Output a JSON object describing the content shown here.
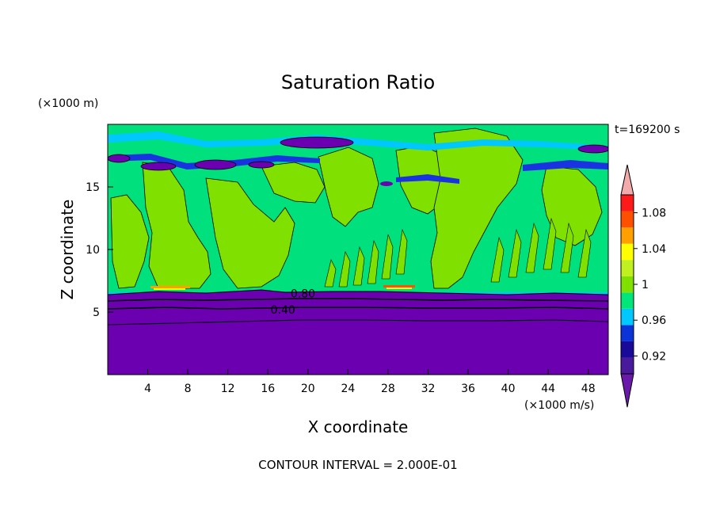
{
  "chart_data": {
    "type": "heatmap",
    "title": "Saturation Ratio",
    "xlabel": "X coordinate",
    "ylabel": "Z coordinate",
    "x_unit": "(×1000 m/s)",
    "y_unit": "(×1000 m)",
    "time_label": "t=169200 s",
    "footer": "CONTOUR INTERVAL = 2.000E-01",
    "xlim": [
      0,
      50
    ],
    "ylim": [
      0,
      20
    ],
    "x_ticks": [
      4,
      8,
      12,
      16,
      20,
      24,
      28,
      32,
      36,
      40,
      44,
      48
    ],
    "y_ticks": [
      5,
      10,
      15
    ],
    "contour_labels": [
      {
        "text": "0.80",
        "x": 19.5,
        "y": 6.5
      },
      {
        "text": "0.40",
        "x": 17.5,
        "y": 5.2
      }
    ],
    "colorbar": {
      "levels": [
        0.9,
        0.92,
        0.94,
        0.96,
        0.98,
        1.0,
        1.02,
        1.04,
        1.06,
        1.08,
        1.1
      ],
      "tick_labels": [
        "0.92",
        "0.96",
        "1",
        "1.04",
        "1.08"
      ],
      "tick_values": [
        0.92,
        0.96,
        1.0,
        1.04,
        1.08
      ],
      "colors": [
        "#4a1a9c",
        "#1a0a9a",
        "#0a33d8",
        "#00c8ff",
        "#00e67a",
        "#80e000",
        "#c0f020",
        "#ffff00",
        "#ffa000",
        "#ff5000",
        "#ff1a1a"
      ],
      "under_color": "#6a1aa8",
      "over_color": "#f2aaaa"
    },
    "regions": {
      "lower_color": "#6a00b0",
      "lower_top_z": 6.7,
      "upper_base_color": "#00e07c",
      "moist_patch_color": "#80e000"
    }
  }
}
